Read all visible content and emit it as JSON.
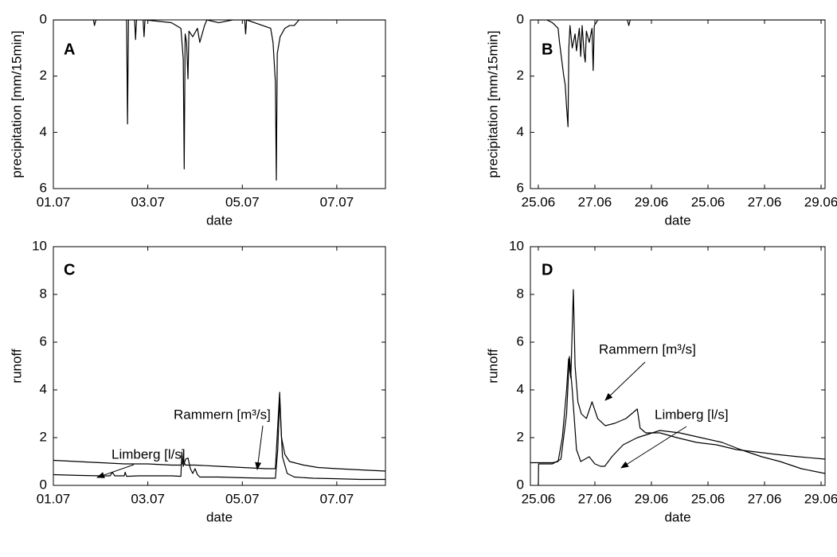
{
  "chart_data": [
    {
      "type": "line",
      "label": "A",
      "xlabel": "date",
      "ylabel": "precipitation [mm/15min]",
      "color": "#000000",
      "x": [
        1,
        1.85,
        1.87,
        1.9,
        2.55,
        2.57,
        2.59,
        2.72,
        2.74,
        2.76,
        2.9,
        2.92,
        2.94,
        3.5,
        3.7,
        3.75,
        3.77,
        3.79,
        3.82,
        3.85,
        3.87,
        3.95,
        4.05,
        4.1,
        4.2,
        4.25,
        4.5,
        4.8,
        5.05,
        5.07,
        5.09,
        5.6,
        5.65,
        5.7,
        5.72,
        5.74,
        5.8,
        5.9,
        6.0,
        6.1,
        6.2,
        8.03
      ],
      "values": [
        0,
        0,
        0.2,
        0,
        0,
        3.7,
        0,
        0,
        0.7,
        0,
        0,
        0.6,
        0,
        0.1,
        0.3,
        1.4,
        5.3,
        0.5,
        0.8,
        2.1,
        0.4,
        0.6,
        0.3,
        0.8,
        0.2,
        0,
        0.1,
        0,
        0,
        0.5,
        0,
        0.3,
        0.8,
        2.2,
        5.7,
        1.2,
        0.6,
        0.3,
        0.2,
        0.2,
        0,
        0
      ],
      "xlim": [
        1,
        8.03
      ],
      "xticks": [
        {
          "value": 1,
          "label": "01.07"
        },
        {
          "value": 3,
          "label": "03.07"
        },
        {
          "value": 5,
          "label": "05.07"
        },
        {
          "value": 7,
          "label": "07.07"
        }
      ],
      "ylim": [
        0,
        6
      ],
      "yticks": [
        0,
        2,
        4,
        6
      ],
      "y_reversed": true,
      "grid": false
    },
    {
      "type": "line",
      "label": "B",
      "xlabel": "date",
      "ylabel": "precipitation [mm/15min]",
      "color": "#000000",
      "x": [
        24.72,
        25.3,
        25.5,
        25.7,
        25.75,
        25.8,
        25.85,
        25.9,
        25.95,
        26.0,
        26.05,
        26.08,
        26.12,
        26.2,
        26.3,
        26.35,
        26.45,
        26.5,
        26.55,
        26.62,
        26.66,
        26.7,
        26.8,
        26.9,
        26.94,
        26.98,
        27.05,
        27.1,
        28.15,
        28.2,
        28.25,
        35.14
      ],
      "values": [
        0,
        0,
        0.1,
        0.3,
        0.8,
        1.2,
        1.6,
        2.0,
        2.3,
        3.1,
        3.8,
        1.0,
        0.2,
        1.0,
        0.5,
        1.1,
        0.3,
        1.3,
        0.2,
        1.2,
        1.5,
        0.4,
        0.8,
        0.3,
        1.8,
        0.2,
        0.1,
        0,
        0,
        0.2,
        0,
        0
      ],
      "xlim": [
        24.72,
        35.14
      ],
      "xticks": [
        {
          "value": 25,
          "label": "25.06"
        },
        {
          "value": 27,
          "label": "27.06"
        },
        {
          "value": 29,
          "label": "29.06"
        },
        {
          "value": 31,
          "label": "25.06"
        },
        {
          "value": 33,
          "label": "27.06"
        },
        {
          "value": 35,
          "label": "29.06"
        }
      ],
      "ylim": [
        0,
        6
      ],
      "yticks": [
        0,
        2,
        4,
        6
      ],
      "y_reversed": true,
      "grid": false
    },
    {
      "type": "line",
      "label": "C",
      "xlabel": "date",
      "ylabel": "runoff",
      "series": [
        {
          "name": "Rammern [m³/s]",
          "color": "#000000",
          "x": [
            1,
            1.5,
            2,
            2.5,
            3,
            3.5,
            3.7,
            3.75,
            3.8,
            4,
            4.5,
            5,
            5.5,
            5.7,
            5.75,
            5.79,
            5.83,
            5.9,
            6,
            6.3,
            6.6,
            7,
            7.5,
            8.03
          ],
          "values": [
            1.05,
            1.0,
            0.95,
            0.9,
            0.9,
            0.85,
            0.85,
            1.0,
            0.85,
            0.85,
            0.8,
            0.75,
            0.7,
            0.7,
            2.5,
            3.9,
            2.0,
            1.3,
            1.0,
            0.85,
            0.75,
            0.7,
            0.65,
            0.6
          ]
        },
        {
          "name": "Limberg [l/s]",
          "color": "#000000",
          "x": [
            1,
            1.5,
            2,
            2.2,
            2.25,
            2.3,
            2.5,
            2.52,
            2.55,
            2.8,
            3.5,
            3.7,
            3.72,
            3.75,
            3.8,
            3.85,
            3.9,
            3.95,
            4.0,
            4.05,
            4.1,
            4.5,
            5,
            5.5,
            5.7,
            5.75,
            5.79,
            5.85,
            5.95,
            6.1,
            6.5,
            7,
            7.5,
            8.03
          ],
          "values": [
            0.45,
            0.42,
            0.4,
            0.4,
            0.55,
            0.4,
            0.4,
            0.55,
            0.38,
            0.4,
            0.4,
            0.38,
            1.4,
            0.8,
            1.1,
            1.15,
            0.7,
            0.5,
            0.7,
            0.45,
            0.35,
            0.35,
            0.32,
            0.3,
            0.3,
            1.5,
            3.6,
            1.2,
            0.5,
            0.35,
            0.3,
            0.28,
            0.25,
            0.25
          ]
        }
      ],
      "xlim": [
        1,
        8.03
      ],
      "xticks": [
        {
          "value": 1,
          "label": "01.07"
        },
        {
          "value": 3,
          "label": "03.07"
        },
        {
          "value": 5,
          "label": "05.07"
        },
        {
          "value": 7,
          "label": "07.07"
        }
      ],
      "ylim": [
        0,
        10
      ],
      "yticks": [
        0,
        2,
        4,
        6,
        8,
        10
      ],
      "y_reversed": false,
      "grid": false
    },
    {
      "type": "line",
      "label": "D",
      "xlabel": "date",
      "ylabel": "runoff",
      "series": [
        {
          "name": "Rammern [m³/s]",
          "color": "#000000",
          "x": [
            24.72,
            25.5,
            25.7,
            25.85,
            26.0,
            26.07,
            26.15,
            26.24,
            26.3,
            26.4,
            26.52,
            26.7,
            26.9,
            27.1,
            27.37,
            27.7,
            28.1,
            28.5,
            28.6,
            28.8,
            29.3,
            29.9,
            30.6,
            31.3,
            32.0,
            32.7,
            33.4,
            34.2,
            35.14
          ],
          "values": [
            0.95,
            0.95,
            1.0,
            2.0,
            4.0,
            5.3,
            4.5,
            8.2,
            5.0,
            3.5,
            3.0,
            2.8,
            3.5,
            2.8,
            2.5,
            2.6,
            2.8,
            3.2,
            2.4,
            2.2,
            2.2,
            2.0,
            1.8,
            1.7,
            1.5,
            1.4,
            1.3,
            1.2,
            1.1
          ]
        },
        {
          "name": "Limberg [l/s]",
          "color": "#000000",
          "x": [
            25.0,
            25.01,
            25.5,
            25.8,
            26.0,
            26.1,
            26.2,
            26.35,
            26.5,
            26.8,
            27.0,
            27.2,
            27.35,
            27.6,
            28.0,
            28.5,
            29.3,
            30.0,
            30.75,
            31.5,
            32.15,
            32.9,
            33.55,
            34.3,
            35.14
          ],
          "values": [
            0,
            0.9,
            0.9,
            1.1,
            3.0,
            5.4,
            4.0,
            1.5,
            1.0,
            1.2,
            0.9,
            0.8,
            0.8,
            1.2,
            1.7,
            2.0,
            2.3,
            2.2,
            2.0,
            1.8,
            1.5,
            1.2,
            1.0,
            0.7,
            0.5
          ]
        }
      ],
      "xlim": [
        24.72,
        35.14
      ],
      "xticks": [
        {
          "value": 25,
          "label": "25.06"
        },
        {
          "value": 27,
          "label": "27.06"
        },
        {
          "value": 29,
          "label": "29.06"
        },
        {
          "value": 31,
          "label": "25.06"
        },
        {
          "value": 33,
          "label": "27.06"
        },
        {
          "value": 35,
          "label": "29.06"
        }
      ],
      "ylim": [
        0,
        10
      ],
      "yticks": [
        0,
        2,
        4,
        6,
        8,
        10
      ],
      "y_reversed": false,
      "grid": false
    }
  ]
}
